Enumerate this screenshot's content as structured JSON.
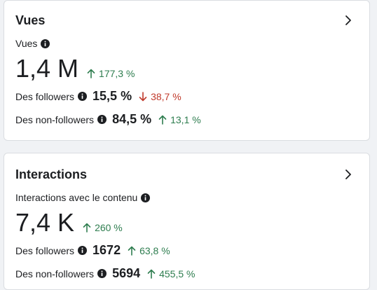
{
  "cards": [
    {
      "title": "Vues",
      "sub_label": "Vues",
      "big_value": "1,4 M",
      "big_trend": {
        "direction": "up",
        "value": "177,3 %"
      },
      "rows": [
        {
          "label": "Des followers",
          "value": "15,5 %",
          "trend": {
            "direction": "down",
            "value": "38,7 %"
          }
        },
        {
          "label": "Des non-followers",
          "value": "84,5 %",
          "trend": {
            "direction": "up",
            "value": "13,1 %"
          }
        }
      ]
    },
    {
      "title": "Interactions",
      "sub_label": "Interactions avec le contenu",
      "big_value": "7,4 K",
      "big_trend": {
        "direction": "up",
        "value": "260 %"
      },
      "rows": [
        {
          "label": "Des followers",
          "value": "1672",
          "trend": {
            "direction": "up",
            "value": "63,8 %"
          }
        },
        {
          "label": "Des non-followers",
          "value": "5694",
          "trend": {
            "direction": "up",
            "value": "455,5 %"
          }
        }
      ]
    }
  ],
  "icons": {
    "info": "info-icon",
    "chevron": "chevron-right-icon",
    "up": "arrow-up-icon",
    "down": "arrow-down-icon"
  },
  "colors": {
    "up": "#2e7d4f",
    "down": "#c0392b",
    "text": "#1c1e21",
    "border": "#dadde1",
    "background": "#f0f2f5"
  }
}
